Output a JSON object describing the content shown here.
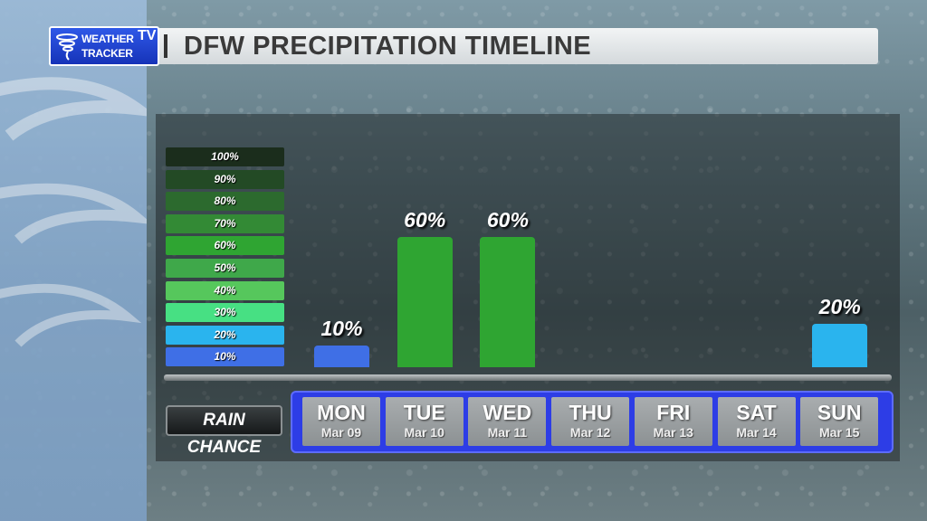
{
  "header": {
    "logo_line1": "WEATHER",
    "logo_line2": "TRACKER",
    "logo_tv": "TV",
    "title": "DFW PRECIPITATION TIMELINE"
  },
  "legend": {
    "steps": [
      {
        "label": "100%",
        "color": "#1b2d1c"
      },
      {
        "label": "90%",
        "color": "#234a25"
      },
      {
        "label": "80%",
        "color": "#2c6a2e"
      },
      {
        "label": "70%",
        "color": "#338a35"
      },
      {
        "label": "60%",
        "color": "#2fa532"
      },
      {
        "label": "50%",
        "color": "#3fa84a"
      },
      {
        "label": "40%",
        "color": "#56c75c"
      },
      {
        "label": "30%",
        "color": "#47e083"
      },
      {
        "label": "20%",
        "color": "#2ab4ee"
      },
      {
        "label": "10%",
        "color": "#3f6fe6"
      }
    ]
  },
  "row_label": "RAIN CHANCE",
  "chart_data": {
    "type": "bar",
    "categories": [
      "MON",
      "TUE",
      "WED",
      "THU",
      "FRI",
      "SAT",
      "SUN"
    ],
    "dates": [
      "Mar 09",
      "Mar 10",
      "Mar 11",
      "Mar 12",
      "Mar 13",
      "Mar 14",
      "Mar 15"
    ],
    "values": [
      10,
      60,
      60,
      0,
      0,
      0,
      20
    ],
    "value_labels": [
      "10%",
      "60%",
      "60%",
      "",
      "",
      "",
      "20%"
    ],
    "bar_colors": [
      "#3f6fe6",
      "#2fa532",
      "#2fa532",
      "",
      "",
      "",
      "#2ab4ee"
    ],
    "title": "DFW PRECIPITATION TIMELINE",
    "ylabel": "RAIN CHANCE",
    "ylim": [
      0,
      100
    ],
    "grid": false
  }
}
